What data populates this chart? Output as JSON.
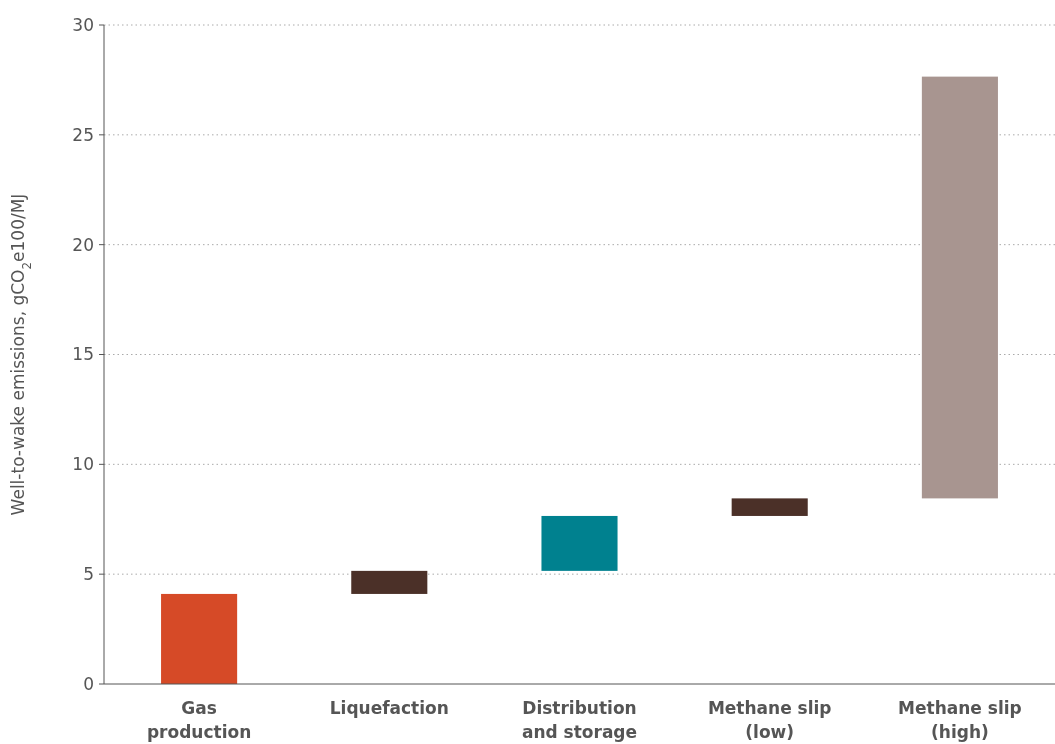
{
  "chart_data": {
    "type": "bar",
    "ylabel": "Well-to-wake emissions, gCO$_{2}$e100/MJ",
    "categories": [
      "Gas production",
      "Liquefaction",
      "Distribution and storage",
      "Methane slip (low)",
      "Methane slip (high)"
    ],
    "values": [
      4.1,
      1.05,
      2.5,
      0.8,
      19.2
    ],
    "base": [
      0,
      4.1,
      5.15,
      7.65,
      8.45
    ],
    "colors": [
      "#d64a27",
      "#4b3028",
      "#00818f",
      "#4b3028",
      "#a89590"
    ],
    "ylim": [
      0,
      30
    ],
    "yticks": [
      0,
      5,
      10,
      15,
      20,
      25,
      30
    ],
    "grid": "y"
  }
}
